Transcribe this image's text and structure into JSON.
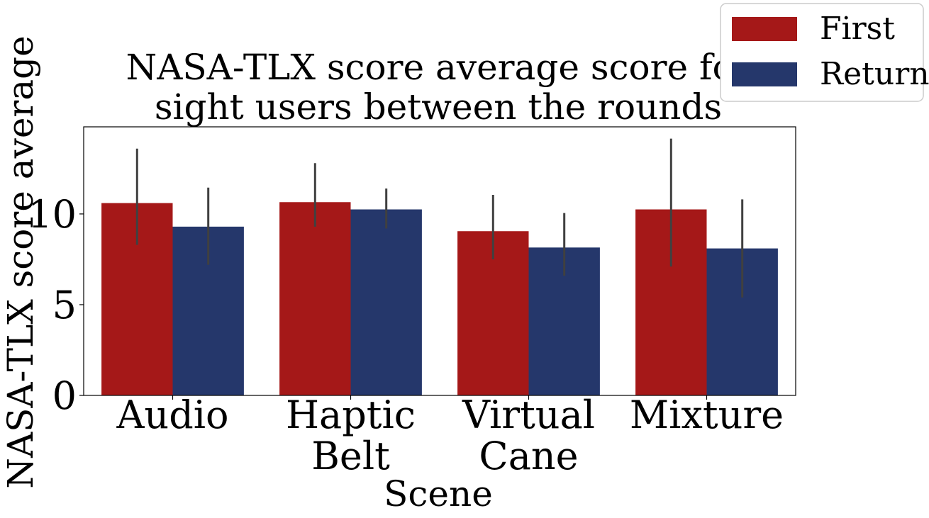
{
  "chart_data": {
    "type": "bar",
    "title": [
      "NASA-TLX score average score for",
      "sight users between the rounds"
    ],
    "xlabel": "Scene",
    "ylabel": "NASA-TLX score average",
    "categories": [
      [
        "Audio"
      ],
      [
        "Haptic",
        "Belt"
      ],
      [
        "Virtual",
        "Cane"
      ],
      [
        "Mixture"
      ]
    ],
    "ylim": [
      0,
      14.8
    ],
    "yticks": [
      0,
      5,
      10
    ],
    "series": [
      {
        "name": "First",
        "color": "#a51818",
        "values": [
          10.6,
          10.65,
          9.05,
          10.25
        ],
        "err_low": [
          8.3,
          9.3,
          7.5,
          7.1
        ],
        "err_high": [
          13.6,
          12.8,
          11.05,
          14.15
        ]
      },
      {
        "name": "Return",
        "color": "#25376b",
        "values": [
          9.3,
          10.25,
          8.15,
          8.1
        ],
        "err_low": [
          7.2,
          9.2,
          6.6,
          5.4
        ],
        "err_high": [
          11.45,
          11.4,
          10.05,
          10.8
        ]
      }
    ],
    "error_bar_color": "#404040",
    "grid": false,
    "legend": "top-right, outside"
  }
}
